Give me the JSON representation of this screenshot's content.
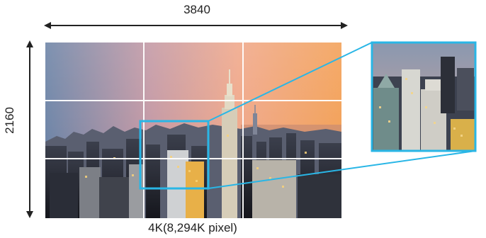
{
  "diagram": {
    "width_label": "3840",
    "height_label": "2160",
    "caption": "4K(8,294K pixel)"
  },
  "colors": {
    "highlight": "#29b6e6",
    "grid": "#ffffff",
    "arrow": "#222222"
  },
  "image": {
    "subject": "city skyline at sunset",
    "grid": "3x3",
    "highlighted_region": "center cell, zoomed into inset"
  }
}
